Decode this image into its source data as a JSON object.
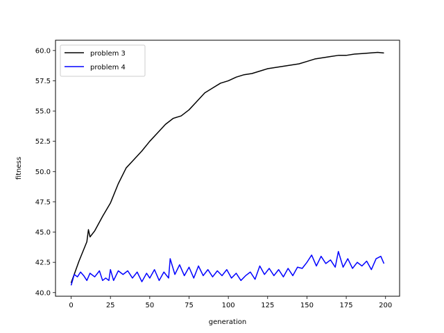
{
  "chart_data": {
    "type": "line",
    "title": "",
    "xlabel": "generation",
    "ylabel": "fitness",
    "xlim": [
      -9.95,
      208.95
    ],
    "ylim": [
      39.7,
      60.85
    ],
    "xticks": [
      0,
      25,
      50,
      75,
      100,
      125,
      150,
      175,
      200
    ],
    "xtick_labels": [
      "0",
      "25",
      "50",
      "75",
      "100",
      "125",
      "150",
      "175",
      "200"
    ],
    "yticks": [
      40.0,
      42.5,
      45.0,
      47.5,
      50.0,
      52.5,
      55.0,
      57.5,
      60.0
    ],
    "ytick_labels": [
      "40.0",
      "42.5",
      "45.0",
      "47.5",
      "50.0",
      "52.5",
      "55.0",
      "57.5",
      "60.0"
    ],
    "grid": false,
    "legend_position": "upper-left",
    "series": [
      {
        "name": "problem 3",
        "color": "#000000",
        "x": [
          0,
          5,
          10,
          11,
          12,
          15,
          20,
          25,
          30,
          35,
          40,
          45,
          50,
          55,
          60,
          65,
          70,
          75,
          80,
          85,
          90,
          95,
          100,
          105,
          110,
          115,
          120,
          125,
          130,
          135,
          140,
          145,
          150,
          155,
          160,
          165,
          170,
          175,
          180,
          185,
          190,
          195,
          199
        ],
        "y": [
          40.8,
          42.6,
          44.2,
          45.2,
          44.6,
          45.1,
          46.3,
          47.4,
          49.0,
          50.3,
          51.0,
          51.7,
          52.5,
          53.2,
          53.9,
          54.4,
          54.6,
          55.1,
          55.8,
          56.5,
          56.9,
          57.3,
          57.5,
          57.8,
          58.0,
          58.1,
          58.3,
          58.5,
          58.6,
          58.7,
          58.8,
          58.9,
          59.1,
          59.3,
          59.4,
          59.5,
          59.6,
          59.6,
          59.7,
          59.75,
          59.8,
          59.85,
          59.8
        ]
      },
      {
        "name": "problem 4",
        "color": "#0000ff",
        "x": [
          0,
          2,
          4,
          6,
          8,
          10,
          12,
          15,
          18,
          20,
          22,
          24,
          25,
          27,
          30,
          33,
          36,
          39,
          42,
          45,
          48,
          50,
          53,
          56,
          59,
          62,
          63,
          66,
          69,
          72,
          75,
          78,
          81,
          84,
          87,
          90,
          93,
          96,
          99,
          102,
          105,
          108,
          111,
          114,
          117,
          120,
          123,
          126,
          129,
          132,
          135,
          138,
          141,
          144,
          147,
          150,
          153,
          156,
          159,
          162,
          165,
          168,
          170,
          173,
          176,
          179,
          182,
          185,
          188,
          191,
          194,
          197,
          199
        ],
        "y": [
          40.6,
          41.5,
          41.3,
          41.7,
          41.4,
          41.0,
          41.6,
          41.3,
          41.8,
          41.0,
          41.2,
          41.0,
          41.9,
          41.0,
          41.8,
          41.5,
          41.8,
          41.2,
          41.7,
          40.9,
          41.6,
          41.2,
          41.9,
          41.0,
          41.7,
          41.2,
          42.8,
          41.5,
          42.3,
          41.4,
          42.1,
          41.2,
          42.2,
          41.4,
          41.9,
          41.3,
          41.8,
          41.4,
          41.9,
          41.2,
          41.6,
          41.0,
          41.4,
          41.7,
          41.1,
          42.2,
          41.5,
          42.0,
          41.4,
          41.9,
          41.3,
          42.0,
          41.4,
          42.1,
          42.0,
          42.5,
          43.1,
          42.2,
          43.0,
          42.4,
          42.7,
          42.1,
          43.4,
          42.1,
          42.8,
          42.0,
          42.5,
          42.2,
          42.6,
          41.9,
          42.8,
          43.0,
          42.4
        ]
      }
    ]
  }
}
